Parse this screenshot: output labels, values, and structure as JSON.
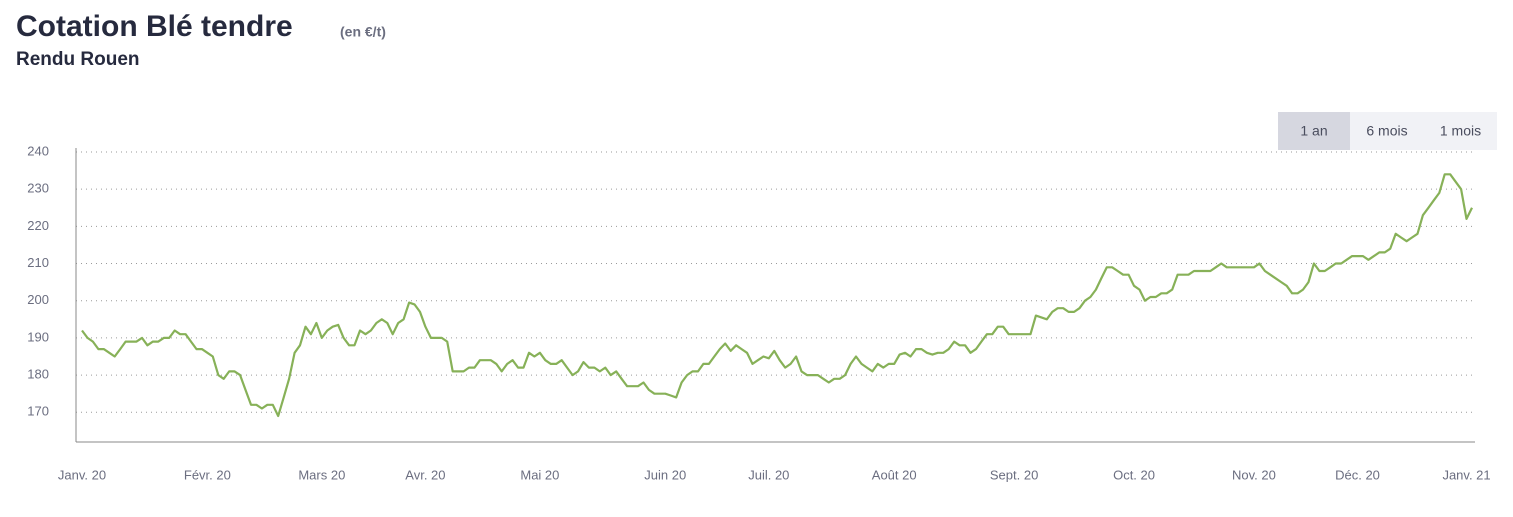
{
  "title": "Cotation Blé tendre",
  "unit": "(en €/t)",
  "subtitle": "Rendu Rouen",
  "controls": {
    "options": [
      "1 an",
      "6 mois",
      "1 mois"
    ],
    "selected": 0
  },
  "chart_data": {
    "type": "line",
    "color": "#87b158",
    "grid": true,
    "ylim": [
      162,
      240
    ],
    "yticks": [
      170,
      180,
      190,
      200,
      210,
      220,
      230,
      240
    ],
    "categories": [
      "Janv. 20",
      null,
      null,
      null,
      null,
      null,
      null,
      null,
      null,
      null,
      null,
      null,
      null,
      null,
      null,
      null,
      null,
      null,
      null,
      null,
      null,
      null,
      null,
      "Févr. 20",
      null,
      null,
      null,
      null,
      null,
      null,
      null,
      null,
      null,
      null,
      null,
      null,
      null,
      null,
      null,
      null,
      null,
      null,
      null,
      null,
      "Mars 20",
      null,
      null,
      null,
      null,
      null,
      null,
      null,
      null,
      null,
      null,
      null,
      null,
      null,
      null,
      null,
      null,
      null,
      null,
      "Avr. 20",
      null,
      null,
      null,
      null,
      null,
      null,
      null,
      null,
      null,
      null,
      null,
      null,
      null,
      null,
      null,
      null,
      null,
      null,
      null,
      null,
      "Mai 20",
      null,
      null,
      null,
      null,
      null,
      null,
      null,
      null,
      null,
      null,
      null,
      null,
      null,
      null,
      null,
      null,
      null,
      null,
      null,
      null,
      null,
      null,
      "Juin 20",
      null,
      null,
      null,
      null,
      null,
      null,
      null,
      null,
      null,
      null,
      null,
      null,
      null,
      null,
      null,
      null,
      null,
      null,
      "Juil. 20",
      null,
      null,
      null,
      null,
      null,
      null,
      null,
      null,
      null,
      null,
      null,
      null,
      null,
      null,
      null,
      null,
      null,
      null,
      null,
      null,
      null,
      null,
      "Août 20",
      null,
      null,
      null,
      null,
      null,
      null,
      null,
      null,
      null,
      null,
      null,
      null,
      null,
      null,
      null,
      null,
      null,
      null,
      null,
      null,
      null,
      "Sept. 20",
      null,
      null,
      null,
      null,
      null,
      null,
      null,
      null,
      null,
      null,
      null,
      null,
      null,
      null,
      null,
      null,
      null,
      null,
      null,
      null,
      null,
      "Oct. 20",
      null,
      null,
      null,
      null,
      null,
      null,
      null,
      null,
      null,
      null,
      null,
      null,
      null,
      null,
      null,
      null,
      null,
      null,
      null,
      null,
      null,
      "Nov. 20",
      null,
      null,
      null,
      null,
      null,
      null,
      null,
      null,
      null,
      null,
      null,
      null,
      null,
      null,
      null,
      null,
      null,
      null,
      "Déc. 20",
      null,
      null,
      null,
      null,
      null,
      null,
      null,
      null,
      null,
      null,
      null,
      null,
      null,
      null,
      null,
      null,
      null,
      null,
      null,
      "Janv. 21",
      null
    ],
    "values": [
      192,
      190,
      189,
      187,
      187,
      186,
      185,
      187,
      189,
      189,
      189,
      190,
      188,
      189,
      189,
      190,
      190,
      192,
      191,
      191,
      189,
      187,
      187,
      186,
      185,
      180,
      179,
      181,
      181,
      180,
      176,
      172,
      172,
      171,
      172,
      172,
      169,
      174,
      179,
      186,
      188,
      193,
      191,
      194,
      190,
      192,
      193,
      193.5,
      190,
      188,
      188,
      192,
      191,
      192,
      194,
      195,
      194,
      191,
      194,
      195,
      199.5,
      199,
      197,
      193,
      190,
      190,
      190,
      189,
      181,
      181,
      181,
      182,
      182,
      184,
      184,
      184,
      183,
      181,
      183,
      184,
      182,
      182,
      186,
      185,
      186,
      184,
      183,
      183,
      184,
      182,
      180,
      181,
      183.5,
      182,
      182,
      181,
      182,
      180,
      181,
      179,
      177,
      177,
      177,
      178,
      176,
      175,
      175,
      175,
      174.5,
      174,
      178,
      180,
      181,
      181,
      183,
      183,
      185,
      187,
      188.5,
      186.5,
      188,
      187,
      186,
      183,
      184,
      185,
      184.5,
      186.5,
      184,
      182,
      183,
      185,
      181,
      180,
      180,
      180,
      179,
      178,
      179,
      179,
      180,
      183,
      185,
      183,
      182,
      181,
      183,
      182,
      183,
      183,
      185.5,
      186,
      185,
      187,
      187,
      186,
      185.5,
      186,
      186,
      187,
      189,
      188,
      188,
      186,
      187,
      189,
      191,
      191,
      193,
      193,
      191,
      191,
      191,
      191,
      191,
      196,
      195.5,
      195,
      197,
      198,
      198,
      197,
      197,
      198,
      200,
      201,
      203,
      206,
      209,
      209,
      208,
      207,
      207,
      204,
      203,
      200,
      201,
      201,
      202,
      202,
      203,
      207,
      207,
      207,
      208,
      208,
      208,
      208,
      209,
      210,
      209,
      209,
      209,
      209,
      209,
      209,
      210,
      208,
      207,
      206,
      205,
      204,
      202,
      202,
      203,
      205,
      210,
      208,
      208,
      209,
      210,
      210,
      211,
      212,
      212,
      212,
      211,
      212,
      213,
      213,
      214,
      218,
      217,
      216,
      217,
      218,
      223,
      225,
      227,
      229,
      234,
      234,
      232,
      230,
      222,
      225
    ]
  }
}
